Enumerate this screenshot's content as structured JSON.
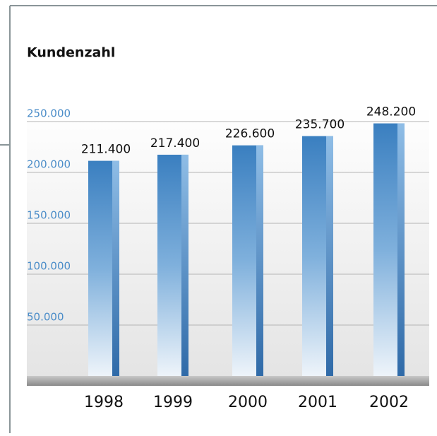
{
  "chart_data": {
    "type": "bar",
    "title": "Kundenzahl",
    "categories": [
      "1998",
      "1999",
      "2000",
      "2001",
      "2002"
    ],
    "values": [
      211400,
      217400,
      226600,
      235700,
      248200
    ],
    "value_labels": [
      "211.400",
      "217.400",
      "226.600",
      "235.700",
      "248.200"
    ],
    "color": "#3a7fc0",
    "ylim": [
      0,
      250000
    ],
    "yticks": [
      {
        "value": 50000,
        "label": "50.000"
      },
      {
        "value": 100000,
        "label": "100.000"
      },
      {
        "value": 150000,
        "label": "150.000"
      },
      {
        "value": 200000,
        "label": "200.000"
      },
      {
        "value": 250000,
        "label": "250.000"
      }
    ],
    "grid": true
  }
}
